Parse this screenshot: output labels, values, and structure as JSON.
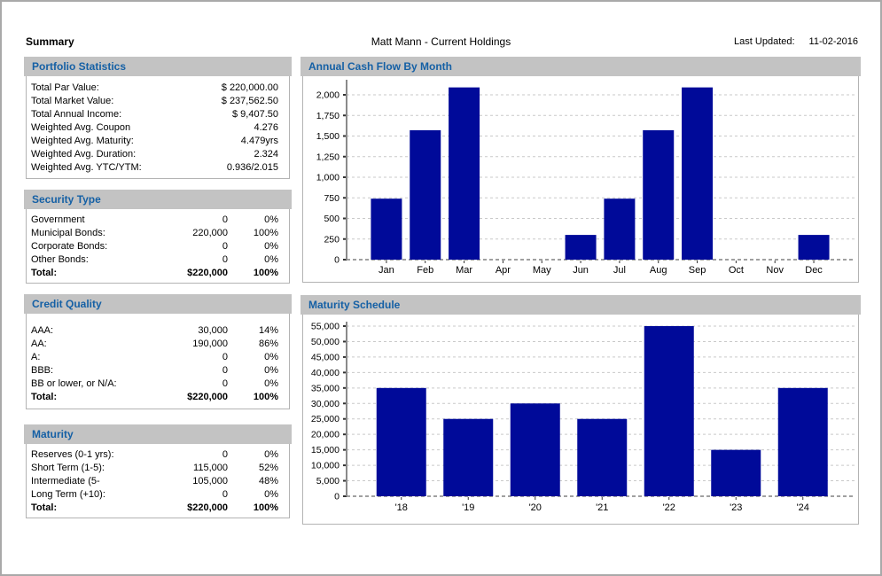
{
  "page": {
    "summary_label": "Summary",
    "title": "Matt Mann - Current Holdings",
    "last_updated_label": "Last Updated:",
    "last_updated_value": "11-02-2016"
  },
  "colors": {
    "bar": "#000a99",
    "panel_header_bg": "#c3c3c3",
    "panel_header_text": "#1560a5",
    "grid_line": "#c9c9c9",
    "zero_line": "#404040",
    "axis_line": "#8a8a8a",
    "tick_mark": "#333333"
  },
  "panels": {
    "portfolio_statistics": {
      "title": "Portfolio Statistics",
      "rows": [
        {
          "label": "Total Par Value:",
          "value": "$ 220,000.00"
        },
        {
          "label": "Total Market Value:",
          "value": "$ 237,562.50"
        },
        {
          "label": "Total Annual Income:",
          "value": "$ 9,407.50"
        },
        {
          "label": "Weighted Avg. Coupon",
          "value": "4.276"
        },
        {
          "label": "Weighted Avg. Maturity:",
          "value": "4.479yrs"
        },
        {
          "label": "Weighted Avg. Duration:",
          "value": "2.324"
        },
        {
          "label": "Weighted Avg. YTC/YTM:",
          "value": "0.936/2.015"
        }
      ]
    },
    "security_type": {
      "title": "Security Type",
      "rows": [
        {
          "label": "Government",
          "amount": "0",
          "pct": "0%"
        },
        {
          "label": "Municipal Bonds:",
          "amount": "220,000",
          "pct": "100%"
        },
        {
          "label": "Corporate Bonds:",
          "amount": "0",
          "pct": "0%"
        },
        {
          "label": "Other Bonds:",
          "amount": "0",
          "pct": "0%"
        },
        {
          "label": "Total:",
          "amount": "$220,000",
          "pct": "100%",
          "bold": true
        }
      ]
    },
    "credit_quality": {
      "title": "Credit Quality",
      "rows": [
        {
          "label": "AAA:",
          "amount": "30,000",
          "pct": "14%"
        },
        {
          "label": "AA:",
          "amount": "190,000",
          "pct": "86%"
        },
        {
          "label": "A:",
          "amount": "0",
          "pct": "0%"
        },
        {
          "label": "BBB:",
          "amount": "0",
          "pct": "0%"
        },
        {
          "label": "BB or lower, or N/A:",
          "amount": "0",
          "pct": "0%"
        },
        {
          "label": "Total:",
          "amount": "$220,000",
          "pct": "100%",
          "bold": true
        }
      ]
    },
    "maturity": {
      "title": "Maturity",
      "rows": [
        {
          "label": "Reserves (0-1 yrs):",
          "amount": "0",
          "pct": "0%"
        },
        {
          "label": "Short Term (1-5):",
          "amount": "115,000",
          "pct": "52%"
        },
        {
          "label": "Intermediate (5-",
          "amount": "105,000",
          "pct": "48%"
        },
        {
          "label": "Long Term (+10):",
          "amount": "0",
          "pct": "0%"
        },
        {
          "label": "Total:",
          "amount": "$220,000",
          "pct": "100%",
          "bold": true
        }
      ]
    }
  },
  "chart_data": [
    {
      "id": "cash_flow",
      "type": "bar",
      "title": "Annual Cash Flow By Month",
      "categories": [
        "Jan",
        "Feb",
        "Mar",
        "Apr",
        "May",
        "Jun",
        "Jul",
        "Aug",
        "Sep",
        "Oct",
        "Nov",
        "Dec"
      ],
      "values": [
        740,
        1570,
        2090,
        0,
        0,
        300,
        740,
        1570,
        2090,
        0,
        0,
        300
      ],
      "yticks": [
        0,
        250,
        500,
        750,
        1000,
        1250,
        1500,
        1750,
        2000
      ],
      "ytick_labels": [
        "0",
        "250",
        "500",
        "750",
        "1,000",
        "1,250",
        "1,500",
        "1,750",
        "2,000"
      ],
      "ylim": [
        0,
        2150
      ],
      "xlabel": "",
      "ylabel": "",
      "grid": true,
      "legend": false,
      "bar_color": "#000a99"
    },
    {
      "id": "maturity_schedule",
      "type": "bar",
      "title": "Maturity Schedule",
      "categories": [
        "'18",
        "'19",
        "'20",
        "'21",
        "'22",
        "'23",
        "'24"
      ],
      "values": [
        35000,
        25000,
        30000,
        25000,
        55000,
        15000,
        35000
      ],
      "yticks": [
        0,
        5000,
        10000,
        15000,
        20000,
        25000,
        30000,
        35000,
        40000,
        45000,
        50000,
        55000
      ],
      "ytick_labels": [
        "0",
        "5,000",
        "10,000",
        "15,000",
        "20,000",
        "25,000",
        "30,000",
        "35,000",
        "40,000",
        "45,000",
        "50,000",
        "55,000"
      ],
      "ylim": [
        0,
        56500
      ],
      "xlabel": "",
      "ylabel": "",
      "grid": true,
      "legend": false,
      "bar_color": "#000a99"
    }
  ]
}
